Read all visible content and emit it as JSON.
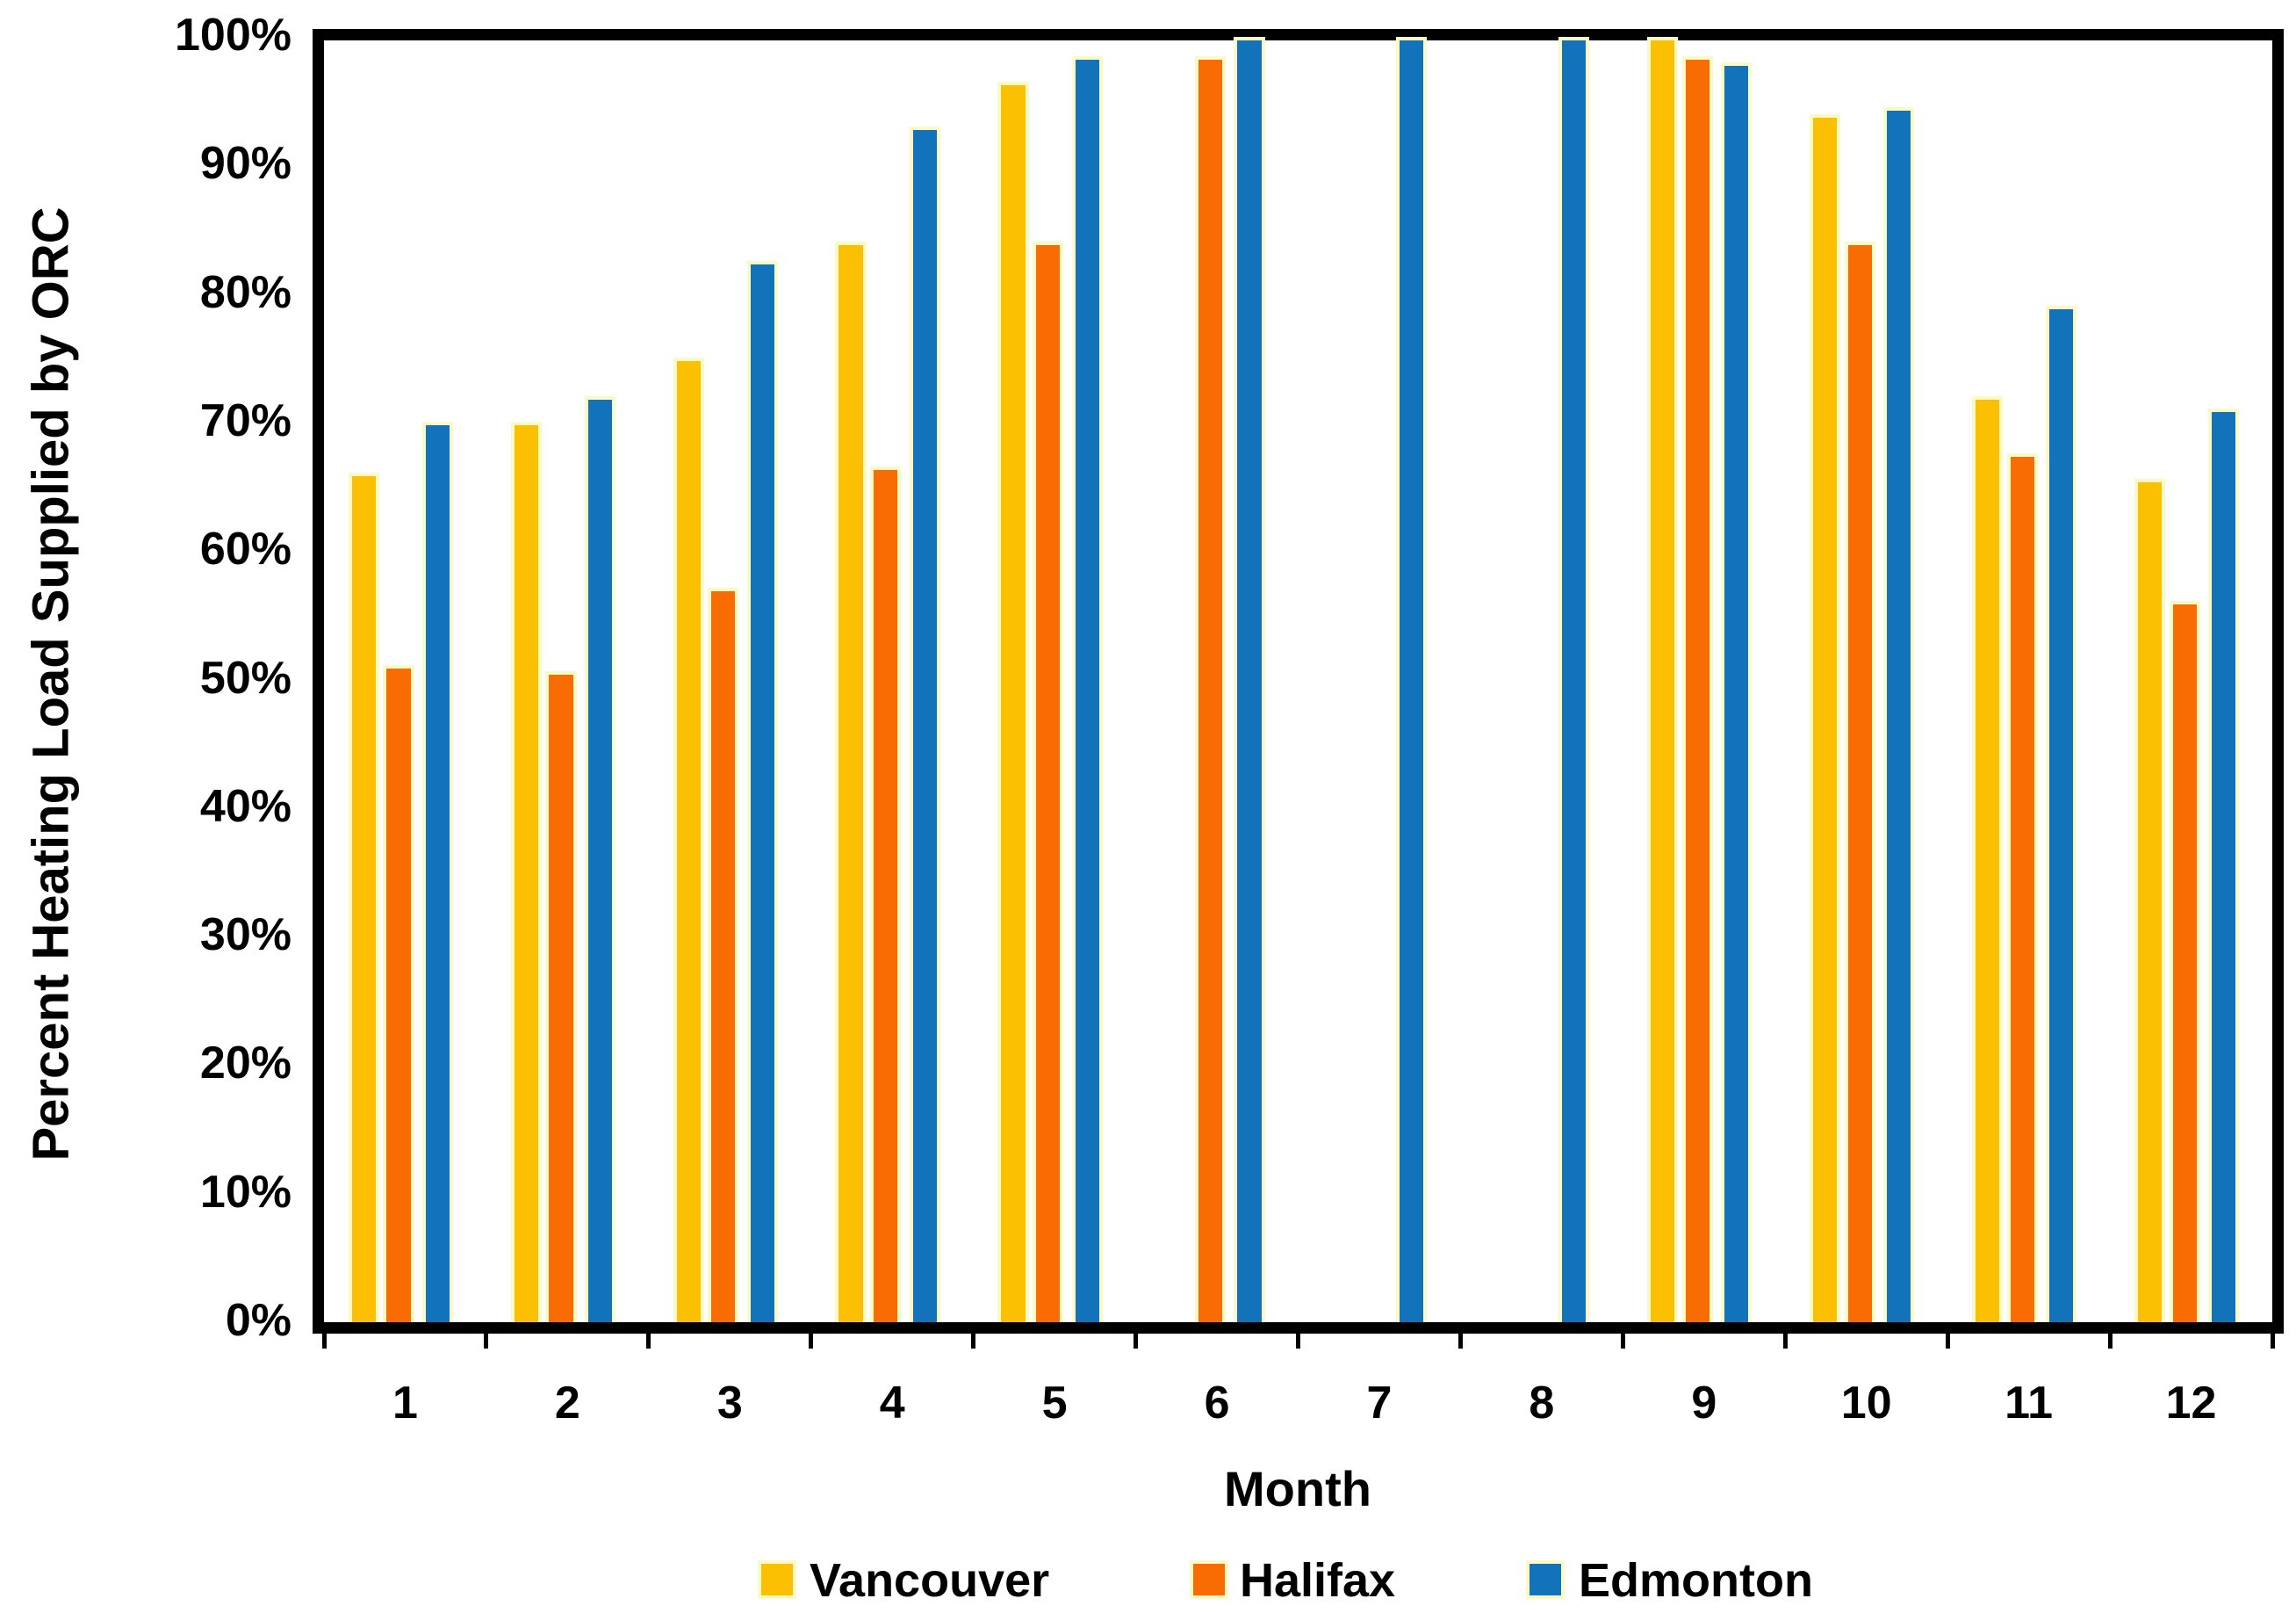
{
  "chart_data": {
    "type": "bar",
    "title": "",
    "xlabel": "Month",
    "ylabel": "Percent Heating Load Supplied by ORC",
    "categories": [
      "1",
      "2",
      "3",
      "4",
      "5",
      "6",
      "7",
      "8",
      "9",
      "10",
      "11",
      "12"
    ],
    "series": [
      {
        "name": "Vancouver",
        "color": "#FCC003",
        "values": [
          66,
          70,
          75,
          84,
          96.5,
          null,
          null,
          null,
          100,
          94,
          72,
          65.5
        ]
      },
      {
        "name": "Halifax",
        "color": "#F96B03",
        "values": [
          51,
          50.5,
          57,
          66.5,
          84,
          98.5,
          null,
          null,
          98.5,
          84,
          67.5,
          56
        ]
      },
      {
        "name": "Edmonton",
        "color": "#1273BB",
        "values": [
          70,
          72,
          82.5,
          93,
          98.5,
          100,
          100,
          100,
          98,
          94.5,
          79,
          71
        ]
      }
    ],
    "ylim": [
      0,
      100
    ],
    "yticks": [
      "100%",
      "90%",
      "80%",
      "70%",
      "60%",
      "50%",
      "40%",
      "30%",
      "20%",
      "10%",
      "0%"
    ],
    "grid": false,
    "legend_position": "bottom",
    "bar_border_color": "#FAFAC6",
    "axis_color": "#000000",
    "text_color": "#000000"
  }
}
